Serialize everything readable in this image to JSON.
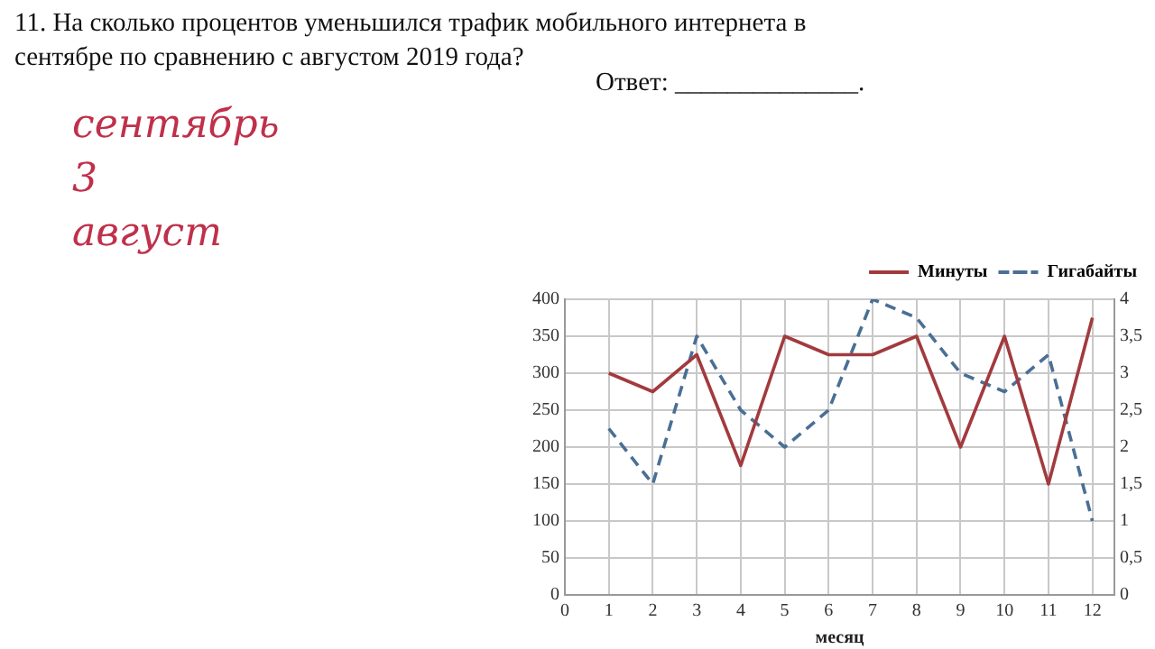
{
  "chart_data": {
    "type": "line",
    "title": "11. На сколько процентов уменьшился трафик мобильного интернета в сентябре по сравнению с августом 2019 года?",
    "annotations": [
      "Ответ: ______________.",
      "сентябрь 3 август"
    ],
    "xlabel": "месяц",
    "x": [
      1,
      2,
      3,
      4,
      5,
      6,
      7,
      8,
      9,
      10,
      11,
      12
    ],
    "series": [
      {
        "name": "Минуты",
        "color": "#a23a3e",
        "line_style": "solid",
        "values": [
          300,
          275,
          325,
          175,
          350,
          325,
          325,
          350,
          200,
          350,
          150,
          375
        ]
      },
      {
        "name": "Гигабайты",
        "color": "#4a6f95",
        "line_style": "dashed",
        "axis": "y2",
        "values": [
          2.25,
          1.5,
          3.5,
          2.5,
          2,
          2.5,
          4,
          3.75,
          3,
          2.75,
          3.25,
          1
        ]
      }
    ],
    "xlim": [
      0,
      12.5
    ],
    "xticks": [
      0,
      1,
      2,
      3,
      4,
      5,
      6,
      7,
      8,
      9,
      10,
      11,
      12
    ],
    "ylim": [
      0,
      400
    ],
    "yticks": [
      0,
      50,
      100,
      150,
      200,
      250,
      300,
      350,
      400
    ],
    "y2lim": [
      0,
      4
    ],
    "y2ticks": [
      0,
      {
        "value": 0.5,
        "label": "0,5"
      },
      1,
      {
        "value": 1.5,
        "label": "1,5"
      },
      2,
      {
        "value": 2.5,
        "label": "2,5"
      },
      3,
      {
        "value": 3.5,
        "label": "3,5"
      },
      4
    ],
    "grid": true,
    "legend": "top",
    "marker": "none"
  }
}
